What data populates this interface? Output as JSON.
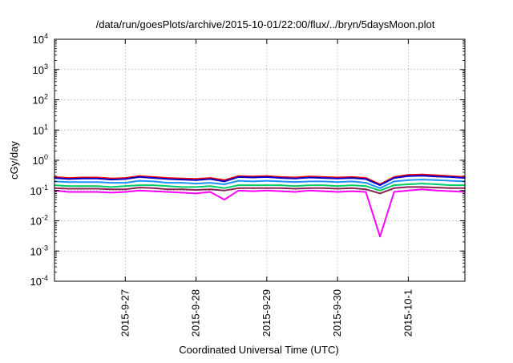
{
  "chart_data": {
    "type": "line",
    "title": "/data/run/goesPlots/archive/2015-10-01/22:00/flux/../bryn/5daysMoon.plot",
    "xlabel": "Coordinated Universal Time (UTC)",
    "ylabel": "cGy/day",
    "yscale": "log",
    "ylim": [
      0.0001,
      10000
    ],
    "xlim": [
      0,
      5.8
    ],
    "grid": true,
    "legend": "none",
    "y_ticks": [
      {
        "value": 0.0001,
        "base": "10",
        "exp": "-4"
      },
      {
        "value": 0.001,
        "base": "10",
        "exp": "-3"
      },
      {
        "value": 0.01,
        "base": "10",
        "exp": "-2"
      },
      {
        "value": 0.1,
        "base": "10",
        "exp": "-1"
      },
      {
        "value": 1,
        "base": "10",
        "exp": "0"
      },
      {
        "value": 10,
        "base": "10",
        "exp": "1"
      },
      {
        "value": 100,
        "base": "10",
        "exp": "2"
      },
      {
        "value": 1000,
        "base": "10",
        "exp": "3"
      },
      {
        "value": 10000,
        "base": "10",
        "exp": "4"
      }
    ],
    "x_ticks": [
      {
        "value": 1,
        "label": "2015-9-27"
      },
      {
        "value": 2,
        "label": "2015-9-28"
      },
      {
        "value": 3,
        "label": "2015-9-29"
      },
      {
        "value": 4,
        "label": "2015-9-30"
      },
      {
        "value": 5,
        "label": "2015-10-1"
      }
    ],
    "series": [
      {
        "color": "#ff0000",
        "x": [
          0,
          0.2,
          0.4,
          0.6,
          0.8,
          1.0,
          1.2,
          1.4,
          1.6,
          1.8,
          2.0,
          2.2,
          2.4,
          2.6,
          2.8,
          3.0,
          3.2,
          3.4,
          3.6,
          3.8,
          4.0,
          4.2,
          4.4,
          4.6,
          4.8,
          5.0,
          5.2,
          5.4,
          5.6,
          5.8
        ],
        "y": [
          0.28,
          0.26,
          0.27,
          0.27,
          0.25,
          0.26,
          0.3,
          0.28,
          0.26,
          0.25,
          0.24,
          0.26,
          0.22,
          0.3,
          0.29,
          0.3,
          0.28,
          0.27,
          0.29,
          0.28,
          0.27,
          0.28,
          0.26,
          0.16,
          0.28,
          0.33,
          0.34,
          0.32,
          0.3,
          0.28
        ]
      },
      {
        "color": "#0000cc",
        "x": [
          0,
          0.2,
          0.4,
          0.6,
          0.8,
          1.0,
          1.2,
          1.4,
          1.6,
          1.8,
          2.0,
          2.2,
          2.4,
          2.6,
          2.8,
          3.0,
          3.2,
          3.4,
          3.6,
          3.8,
          4.0,
          4.2,
          4.4,
          4.6,
          4.8,
          5.0,
          5.2,
          5.4,
          5.6,
          5.8
        ],
        "y": [
          0.26,
          0.24,
          0.25,
          0.25,
          0.23,
          0.24,
          0.28,
          0.26,
          0.24,
          0.23,
          0.22,
          0.24,
          0.2,
          0.28,
          0.27,
          0.28,
          0.26,
          0.25,
          0.27,
          0.26,
          0.25,
          0.26,
          0.24,
          0.15,
          0.26,
          0.3,
          0.31,
          0.29,
          0.28,
          0.26
        ]
      },
      {
        "color": "#1e90ff",
        "x": [
          0,
          0.2,
          0.4,
          0.6,
          0.8,
          1.0,
          1.2,
          1.4,
          1.6,
          1.8,
          2.0,
          2.2,
          2.4,
          2.6,
          2.8,
          3.0,
          3.2,
          3.4,
          3.6,
          3.8,
          4.0,
          4.2,
          4.4,
          4.6,
          4.8,
          5.0,
          5.2,
          5.4,
          5.6,
          5.8
        ],
        "y": [
          0.2,
          0.19,
          0.19,
          0.19,
          0.18,
          0.18,
          0.21,
          0.2,
          0.18,
          0.18,
          0.17,
          0.18,
          0.16,
          0.21,
          0.2,
          0.21,
          0.2,
          0.19,
          0.2,
          0.2,
          0.19,
          0.2,
          0.18,
          0.12,
          0.2,
          0.22,
          0.23,
          0.22,
          0.21,
          0.2
        ]
      },
      {
        "color": "#00cc66",
        "x": [
          0,
          0.2,
          0.4,
          0.6,
          0.8,
          1.0,
          1.2,
          1.4,
          1.6,
          1.8,
          2.0,
          2.2,
          2.4,
          2.6,
          2.8,
          3.0,
          3.2,
          3.4,
          3.6,
          3.8,
          4.0,
          4.2,
          4.4,
          4.6,
          4.8,
          5.0,
          5.2,
          5.4,
          5.6,
          5.8
        ],
        "y": [
          0.15,
          0.14,
          0.14,
          0.14,
          0.13,
          0.14,
          0.15,
          0.15,
          0.14,
          0.13,
          0.13,
          0.14,
          0.12,
          0.15,
          0.15,
          0.15,
          0.15,
          0.14,
          0.15,
          0.15,
          0.14,
          0.15,
          0.14,
          0.1,
          0.15,
          0.16,
          0.17,
          0.16,
          0.15,
          0.15
        ]
      },
      {
        "color": "#8b2252",
        "x": [
          0,
          0.2,
          0.4,
          0.6,
          0.8,
          1.0,
          1.2,
          1.4,
          1.6,
          1.8,
          2.0,
          2.2,
          2.4,
          2.6,
          2.8,
          3.0,
          3.2,
          3.4,
          3.6,
          3.8,
          4.0,
          4.2,
          4.4,
          4.6,
          4.8,
          5.0,
          5.2,
          5.4,
          5.6,
          5.8
        ],
        "y": [
          0.12,
          0.115,
          0.115,
          0.115,
          0.11,
          0.11,
          0.125,
          0.12,
          0.11,
          0.11,
          0.105,
          0.11,
          0.1,
          0.12,
          0.12,
          0.12,
          0.12,
          0.115,
          0.12,
          0.12,
          0.115,
          0.12,
          0.11,
          0.08,
          0.12,
          0.13,
          0.13,
          0.125,
          0.12,
          0.12
        ]
      },
      {
        "color": "#ff00ff",
        "x": [
          0,
          0.2,
          0.4,
          0.6,
          0.8,
          1.0,
          1.2,
          1.4,
          1.6,
          1.8,
          2.0,
          2.2,
          2.4,
          2.6,
          2.8,
          3.0,
          3.2,
          3.4,
          3.6,
          3.8,
          4.0,
          4.2,
          4.4,
          4.6,
          4.8,
          5.0,
          5.2,
          5.4,
          5.6,
          5.8
        ],
        "y": [
          0.1,
          0.09,
          0.09,
          0.09,
          0.085,
          0.09,
          0.1,
          0.095,
          0.09,
          0.085,
          0.08,
          0.09,
          0.05,
          0.1,
          0.095,
          0.1,
          0.095,
          0.09,
          0.1,
          0.095,
          0.09,
          0.095,
          0.09,
          0.003,
          0.09,
          0.1,
          0.11,
          0.1,
          0.095,
          0.09
        ]
      }
    ]
  }
}
